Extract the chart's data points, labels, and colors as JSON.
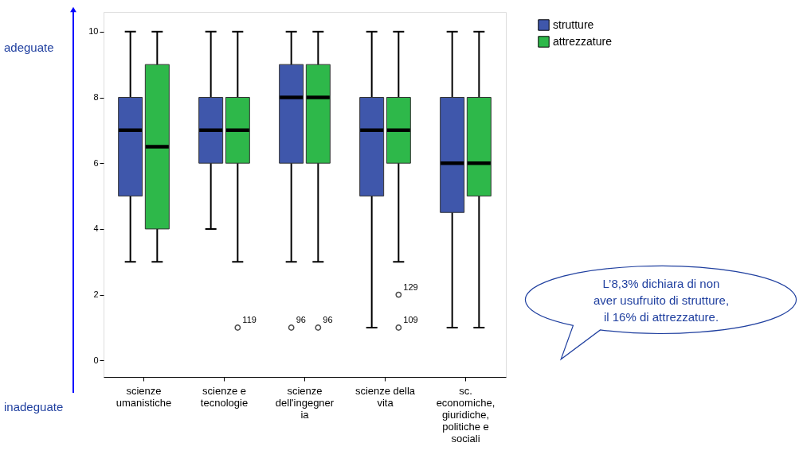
{
  "chart_data": {
    "type": "box",
    "categories": [
      "scienze umanistiche",
      "scienze e tecnologie",
      "scienze dell'ingegneria",
      "scienze della vita",
      "sc. economiche, giuridiche, politiche e sociali"
    ],
    "series": [
      {
        "name": "strutture",
        "color": "#3f57ab",
        "boxes": [
          {
            "low": 3,
            "q1": 5,
            "median": 7,
            "q3": 8,
            "high": 10
          },
          {
            "low": 4,
            "q1": 6,
            "median": 7,
            "q3": 8,
            "high": 10
          },
          {
            "low": 3,
            "q1": 6,
            "median": 8,
            "q3": 9,
            "high": 10,
            "outliers": [
              1
            ]
          },
          {
            "low": 1,
            "q1": 5,
            "median": 7,
            "q3": 8,
            "high": 10
          },
          {
            "low": 1,
            "q1": 4.5,
            "median": 6,
            "q3": 8,
            "high": 10
          }
        ]
      },
      {
        "name": "attrezzature",
        "color": "#2eb84a",
        "boxes": [
          {
            "low": 3,
            "q1": 4,
            "median": 6.5,
            "q3": 9,
            "high": 10
          },
          {
            "low": 3,
            "q1": 6,
            "median": 7,
            "q3": 8,
            "high": 10,
            "outliers": [
              1
            ]
          },
          {
            "low": 3,
            "q1": 6,
            "median": 8,
            "q3": 9,
            "high": 10,
            "outliers": [
              1
            ]
          },
          {
            "low": 3,
            "q1": 6,
            "median": 7,
            "q3": 8,
            "high": 10,
            "outliers": [
              2,
              1
            ]
          },
          {
            "low": 1,
            "q1": 5,
            "median": 6,
            "q3": 8,
            "high": 10
          }
        ]
      }
    ],
    "ylim": [
      -0.5,
      10.6
    ],
    "yticks": [
      0,
      2,
      4,
      6,
      8,
      10
    ],
    "grid": false,
    "legend": "top right",
    "marker": "circle",
    "annotations": [
      "119",
      "96",
      "96",
      "129",
      "109",
      "adeguate",
      "inadeguate",
      "L’8,3% dichiara di non aver usufruito di strutture, il 16% di attrezzature."
    ]
  }
}
